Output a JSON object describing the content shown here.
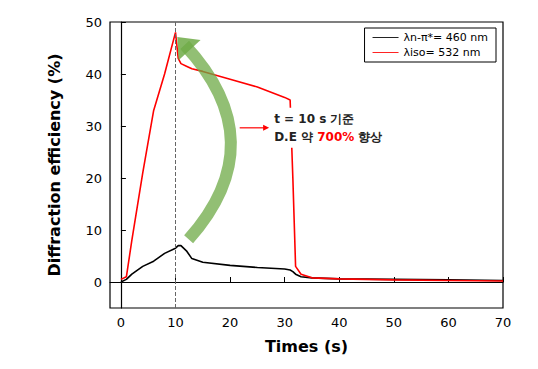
{
  "chart_data": {
    "type": "line",
    "x_label": "Times (s)",
    "y_label": "Diffraction efficiency (%)",
    "x": [
      0,
      1,
      2,
      4,
      6,
      8,
      10,
      10.5,
      11,
      12,
      13,
      15,
      20,
      25,
      30,
      31,
      31.5,
      32,
      33,
      35,
      40,
      50,
      60,
      70
    ],
    "series": [
      {
        "name": "λn-π*= 460 nm",
        "color": "#000000",
        "values": [
          0,
          0.5,
          1.5,
          3,
          4,
          5.5,
          6.5,
          7,
          7,
          6,
          4.5,
          3.8,
          3.2,
          2.8,
          2.5,
          2.3,
          2,
          1.5,
          1,
          0.8,
          0.6,
          0.5,
          0.4,
          0.3
        ]
      },
      {
        "name": "λiso= 532 nm",
        "color": "#ff0000",
        "values": [
          0.5,
          1,
          8,
          21,
          33,
          40,
          48,
          43,
          42,
          41.5,
          41,
          40.5,
          39,
          37.5,
          35.5,
          35,
          20,
          3,
          1.5,
          0.8,
          0.6,
          0.4,
          0.3,
          0.2
        ]
      }
    ],
    "xlim": [
      -2,
      70
    ],
    "xticks": [
      0,
      10,
      20,
      30,
      40,
      50,
      60,
      70
    ],
    "ylim": [
      -5,
      50
    ],
    "yticks": [
      0,
      10,
      20,
      30,
      40,
      50
    ],
    "marker_x": 10,
    "annotation": {
      "lines": [
        "t = 10 s 기준",
        "D.E 약 700% 향상"
      ],
      "highlight": "700%"
    },
    "legend": "upper right",
    "grid": false
  }
}
